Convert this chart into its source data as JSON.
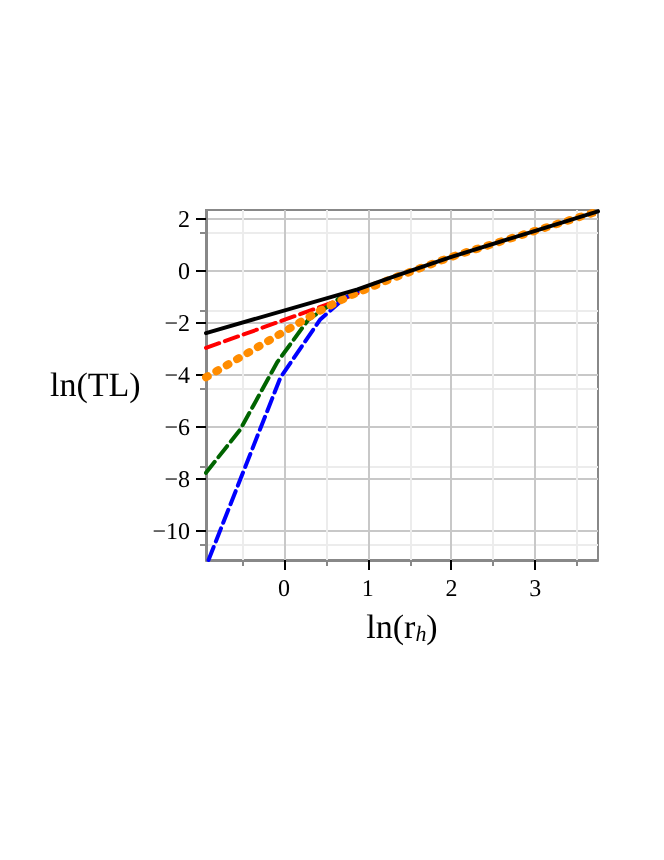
{
  "chart_data": {
    "type": "line",
    "xlabel": "ln(r$_{h}$)",
    "ylabel": "ln(TL)",
    "xlim": [
      -0.93,
      3.75
    ],
    "ylim": [
      -11.1,
      2.35
    ],
    "xticks": [
      0,
      1,
      2,
      3
    ],
    "yticks": [
      -10,
      -8,
      -6,
      -4,
      -2,
      0,
      2
    ],
    "grid": true,
    "marker": "none",
    "series": [
      {
        "color": "#ff0000",
        "line_style": "dashed",
        "x": [
          -0.93,
          0.51,
          0.88
        ],
        "values": [
          -2.95,
          -1.29,
          -0.85
        ]
      },
      {
        "color": "#006400",
        "line_style": "dashed",
        "x": [
          -0.93,
          -0.52,
          -0.08,
          0.29,
          0.66
        ],
        "values": [
          -7.75,
          -6.08,
          -3.5,
          -1.87,
          -1.05
        ]
      },
      {
        "color": "#0000ff",
        "line_style": "dashed",
        "x": [
          -0.9,
          -0.04,
          0.43,
          0.73,
          0.95
        ],
        "values": [
          -11.1,
          -4.08,
          -1.87,
          -1.02,
          -0.65
        ]
      },
      {
        "color": "#ff8c00",
        "line_style": "dotted",
        "x": [
          -0.93,
          0.43,
          0.8,
          1.3,
          2,
          3,
          3.75
        ],
        "values": [
          -4.08,
          -1.52,
          -0.93,
          -0.27,
          0.55,
          1.55,
          2.3
        ]
      },
      {
        "color": "#000000",
        "line_style": "solid",
        "x": [
          -0.93,
          0.88,
          1.3,
          2,
          3,
          3.75
        ],
        "values": [
          -2.38,
          -0.7,
          -0.22,
          0.55,
          1.55,
          2.3
        ]
      }
    ]
  }
}
